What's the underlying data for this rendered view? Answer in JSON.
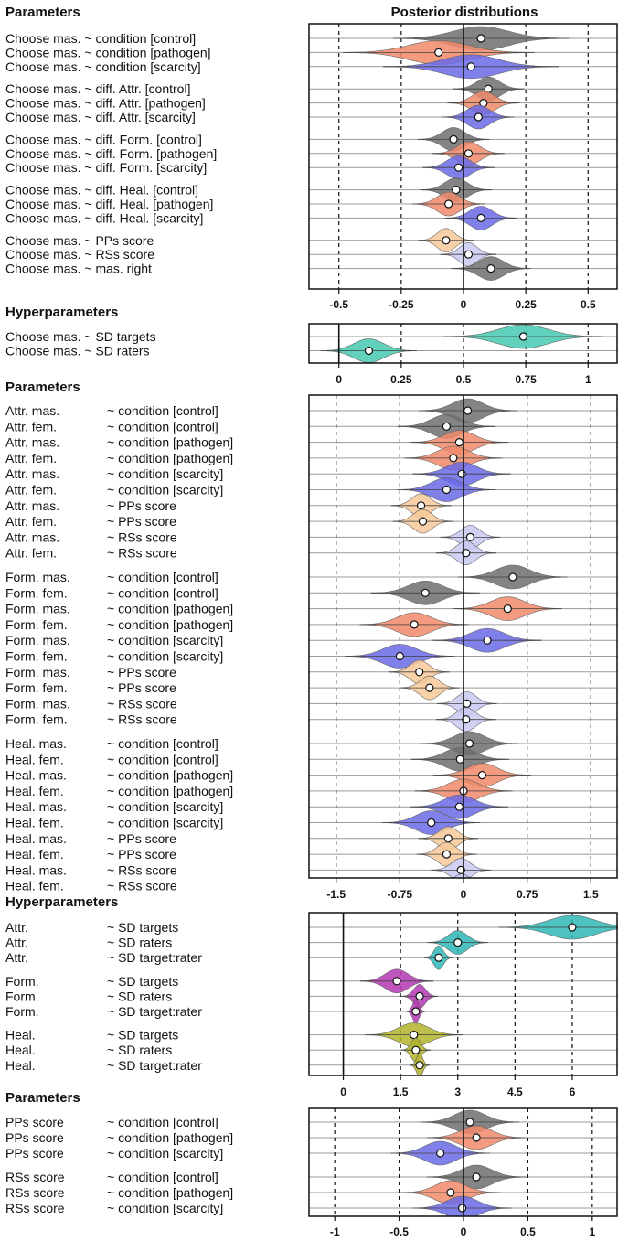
{
  "figure": {
    "title": "Posterior distributions",
    "colors": {
      "control": "#6f6f6f",
      "pathogen": "#f08a6a",
      "scarcity": "#6a6ae8",
      "pps": "#f7c99a",
      "rss": "#c9c9f2",
      "masright": "#6f6f6f",
      "targets": "#45c8b0",
      "raters": "#45c8b0",
      "attr": "#2fb6b6",
      "form": "#b338b3",
      "heal": "#b3b32a"
    }
  },
  "chart_data": [
    {
      "type": "violin",
      "section_title": "Parameters",
      "xlim": [
        -0.62,
        0.62
      ],
      "ticks": [
        -0.5,
        -0.25,
        0,
        0.25,
        0.5
      ],
      "tick_labels": [
        "-0.5",
        "-0.25",
        "0",
        "0.25",
        "0.5"
      ],
      "dashed_at": [
        -0.5,
        -0.25,
        0.25,
        0.5
      ],
      "solid_at": [
        0
      ],
      "rows": [
        {
          "label": "Choose mas. ~ condition [control]",
          "median": 0.07,
          "sd": 0.11,
          "color": "control",
          "group": 0
        },
        {
          "label": "Choose mas. ~ condition [pathogen]",
          "median": -0.1,
          "sd": 0.12,
          "color": "pathogen",
          "group": 0
        },
        {
          "label": "Choose mas. ~ condition [scarcity]",
          "median": 0.03,
          "sd": 0.11,
          "color": "scarcity",
          "group": 0
        },
        {
          "label": "Choose mas. ~ diff. Attr. [control]",
          "median": 0.1,
          "sd": 0.045,
          "color": "control",
          "group": 1
        },
        {
          "label": "Choose mas. ~ diff. Attr. [pathogen]",
          "median": 0.08,
          "sd": 0.045,
          "color": "pathogen",
          "group": 1
        },
        {
          "label": "Choose mas. ~ diff. Attr. [scarcity]",
          "median": 0.06,
          "sd": 0.045,
          "color": "scarcity",
          "group": 1
        },
        {
          "label": "Choose mas. ~ diff. Form. [control]",
          "median": -0.04,
          "sd": 0.045,
          "color": "control",
          "group": 2
        },
        {
          "label": "Choose mas. ~ diff. Form. [pathogen]",
          "median": 0.02,
          "sd": 0.045,
          "color": "pathogen",
          "group": 2
        },
        {
          "label": "Choose mas. ~ diff. Form. [scarcity]",
          "median": -0.02,
          "sd": 0.045,
          "color": "scarcity",
          "group": 2
        },
        {
          "label": "Choose mas. ~ diff. Heal. [control]",
          "median": -0.03,
          "sd": 0.045,
          "color": "control",
          "group": 3
        },
        {
          "label": "Choose mas. ~ diff. Heal. [pathogen]",
          "median": -0.06,
          "sd": 0.045,
          "color": "pathogen",
          "group": 3
        },
        {
          "label": "Choose mas. ~ diff. Heal. [scarcity]",
          "median": 0.07,
          "sd": 0.045,
          "color": "scarcity",
          "group": 3
        },
        {
          "label": "Choose mas. ~ PPs score",
          "median": -0.07,
          "sd": 0.035,
          "color": "pps",
          "group": 4
        },
        {
          "label": "Choose mas. ~ RSs score",
          "median": 0.02,
          "sd": 0.035,
          "color": "rss",
          "group": 4
        },
        {
          "label": "Choose mas. ~ mas. right",
          "median": 0.11,
          "sd": 0.05,
          "color": "masright",
          "group": 4
        }
      ]
    },
    {
      "type": "violin",
      "section_title": "Hyperparameters",
      "xlim": [
        -0.12,
        1.12
      ],
      "ticks": [
        0,
        0.25,
        0.5,
        0.75,
        1
      ],
      "tick_labels": [
        "0",
        "0.25",
        "0.5",
        "0.75",
        "1"
      ],
      "dashed_at": [
        0.25,
        0.5,
        0.75,
        1
      ],
      "solid_at": [
        0
      ],
      "rows": [
        {
          "label": "Choose mas. ~ SD targets",
          "median": 0.74,
          "sd": 0.1,
          "color": "targets",
          "group": 0
        },
        {
          "label": "Choose mas. ~ SD raters",
          "median": 0.12,
          "sd": 0.06,
          "color": "raters",
          "group": 0
        }
      ]
    },
    {
      "type": "violin",
      "section_title": "Parameters",
      "xlim": [
        -1.82,
        1.82
      ],
      "ticks": [
        -1.5,
        -0.75,
        0,
        0.75,
        1.5
      ],
      "tick_labels": [
        "-1.5",
        "-0.75",
        "0",
        "0.75",
        "1.5"
      ],
      "dashed_at": [
        -1.5,
        -0.75,
        0.75,
        1.5
      ],
      "solid_at": [
        0
      ],
      "rows": [
        {
          "label": [
            "Attr. mas.",
            "~ condition [control]"
          ],
          "median": 0.05,
          "sd": 0.18,
          "color": "control",
          "group": 0
        },
        {
          "label": [
            "Attr. fem.",
            "~ condition [control]"
          ],
          "median": -0.2,
          "sd": 0.18,
          "color": "control",
          "group": 0
        },
        {
          "label": [
            "Attr. mas.",
            "~ condition [pathogen]"
          ],
          "median": -0.05,
          "sd": 0.18,
          "color": "pathogen",
          "group": 0
        },
        {
          "label": [
            "Attr. fem.",
            "~ condition [pathogen]"
          ],
          "median": -0.12,
          "sd": 0.18,
          "color": "pathogen",
          "group": 0
        },
        {
          "label": [
            "Attr. mas.",
            "~ condition [scarcity]"
          ],
          "median": -0.02,
          "sd": 0.18,
          "color": "scarcity",
          "group": 0
        },
        {
          "label": [
            "Attr. fem.",
            "~ condition [scarcity]"
          ],
          "median": -0.2,
          "sd": 0.18,
          "color": "scarcity",
          "group": 0
        },
        {
          "label": [
            "Attr. mas.",
            "~ PPs score"
          ],
          "median": -0.5,
          "sd": 0.11,
          "color": "pps",
          "group": 0
        },
        {
          "label": [
            "Attr. fem.",
            "~ PPs score"
          ],
          "median": -0.48,
          "sd": 0.11,
          "color": "pps",
          "group": 0
        },
        {
          "label": [
            "Attr. mas.",
            "~ RSs score"
          ],
          "median": 0.08,
          "sd": 0.11,
          "color": "rss",
          "group": 0
        },
        {
          "label": [
            "Attr. fem.",
            "~ RSs score"
          ],
          "median": 0.03,
          "sd": 0.11,
          "color": "rss",
          "group": 0
        },
        {
          "label": [
            "Form. mas.",
            "~ condition [control]"
          ],
          "median": 0.58,
          "sd": 0.2,
          "color": "control",
          "group": 1
        },
        {
          "label": [
            "Form. fem.",
            "~ condition [control]"
          ],
          "median": -0.45,
          "sd": 0.2,
          "color": "control",
          "group": 1
        },
        {
          "label": [
            "Form. mas.",
            "~ condition [pathogen]"
          ],
          "median": 0.52,
          "sd": 0.2,
          "color": "pathogen",
          "group": 1
        },
        {
          "label": [
            "Form. fem.",
            "~ condition [pathogen]"
          ],
          "median": -0.58,
          "sd": 0.2,
          "color": "pathogen",
          "group": 1
        },
        {
          "label": [
            "Form. mas.",
            "~ condition [scarcity]"
          ],
          "median": 0.28,
          "sd": 0.2,
          "color": "scarcity",
          "group": 1
        },
        {
          "label": [
            "Form. fem.",
            "~ condition [scarcity]"
          ],
          "median": -0.75,
          "sd": 0.2,
          "color": "scarcity",
          "group": 1
        },
        {
          "label": [
            "Form. mas.",
            "~ PPs score"
          ],
          "median": -0.52,
          "sd": 0.11,
          "color": "pps",
          "group": 1
        },
        {
          "label": [
            "Form. fem.",
            "~ PPs score"
          ],
          "median": -0.4,
          "sd": 0.11,
          "color": "pps",
          "group": 1
        },
        {
          "label": [
            "Form. mas.",
            "~ RSs score"
          ],
          "median": 0.04,
          "sd": 0.11,
          "color": "rss",
          "group": 1
        },
        {
          "label": [
            "Form. fem.",
            "~ RSs score"
          ],
          "median": 0.03,
          "sd": 0.11,
          "color": "rss",
          "group": 1
        },
        {
          "label": [
            "Heal. mas.",
            "~ condition [control]"
          ],
          "median": 0.07,
          "sd": 0.18,
          "color": "control",
          "group": 2
        },
        {
          "label": [
            "Heal. fem.",
            "~ condition [control]"
          ],
          "median": -0.04,
          "sd": 0.18,
          "color": "control",
          "group": 2
        },
        {
          "label": [
            "Heal. mas.",
            "~ condition [pathogen]"
          ],
          "median": 0.22,
          "sd": 0.18,
          "color": "pathogen",
          "group": 2
        },
        {
          "label": [
            "Heal. fem.",
            "~ condition [pathogen]"
          ],
          "median": 0,
          "sd": 0.18,
          "color": "pathogen",
          "group": 2
        },
        {
          "label": [
            "Heal. mas.",
            "~ condition [scarcity]"
          ],
          "median": -0.05,
          "sd": 0.18,
          "color": "scarcity",
          "group": 2
        },
        {
          "label": [
            "Heal. fem.",
            "~ condition [scarcity]"
          ],
          "median": -0.38,
          "sd": 0.18,
          "color": "scarcity",
          "group": 2
        },
        {
          "label": [
            "Heal. mas.",
            "~ PPs score"
          ],
          "median": -0.18,
          "sd": 0.11,
          "color": "pps",
          "group": 2
        },
        {
          "label": [
            "Heal. fem.",
            "~ PPs score"
          ],
          "median": -0.2,
          "sd": 0.11,
          "color": "pps",
          "group": 2
        },
        {
          "label": [
            "Heal. mas.",
            "~ RSs score"
          ],
          "median": -0.03,
          "sd": 0.11,
          "color": "rss",
          "group": 2
        },
        {
          "label": [
            "Heal. fem.",
            "~ RSs score"
          ],
          "median": -0.02,
          "sd": 0.11,
          "color": "rss",
          "group": 2
        }
      ]
    },
    {
      "type": "violin",
      "section_title": "Hyperparameters",
      "xlim": [
        -0.9,
        7.2
      ],
      "ticks": [
        0,
        1.5,
        3,
        4.5,
        6
      ],
      "tick_labels": [
        "0",
        "1.5",
        "3",
        "4.5",
        "6"
      ],
      "dashed_at": [
        1.5,
        3,
        4.5,
        6
      ],
      "solid_at": [
        0
      ],
      "rows": [
        {
          "label": [
            "Attr.",
            "~ SD targets"
          ],
          "median": 6.0,
          "sd": 0.6,
          "color": "attr",
          "group": 0
        },
        {
          "label": [
            "Attr.",
            "~ SD raters"
          ],
          "median": 3.0,
          "sd": 0.25,
          "color": "attr",
          "group": 0
        },
        {
          "label": [
            "Attr.",
            "~ SD target:rater"
          ],
          "median": 2.5,
          "sd": 0.12,
          "color": "attr",
          "group": 0
        },
        {
          "label": [
            "Form.",
            "~ SD targets"
          ],
          "median": 1.4,
          "sd": 0.3,
          "color": "form",
          "group": 1
        },
        {
          "label": [
            "Form.",
            "~ SD raters"
          ],
          "median": 2.0,
          "sd": 0.15,
          "color": "form",
          "group": 1
        },
        {
          "label": [
            "Form.",
            "~ SD target:rater"
          ],
          "median": 1.9,
          "sd": 0.08,
          "color": "form",
          "group": 1
        },
        {
          "label": [
            "Heal.",
            "~ SD targets"
          ],
          "median": 1.85,
          "sd": 0.4,
          "color": "heal",
          "group": 2
        },
        {
          "label": [
            "Heal.",
            "~ SD raters"
          ],
          "median": 1.9,
          "sd": 0.12,
          "color": "heal",
          "group": 2
        },
        {
          "label": [
            "Heal.",
            "~ SD target:rater"
          ],
          "median": 2.0,
          "sd": 0.08,
          "color": "heal",
          "group": 2
        }
      ]
    },
    {
      "type": "violin",
      "section_title": "Parameters",
      "xlim": [
        -1.2,
        1.2
      ],
      "ticks": [
        -1,
        -0.5,
        0,
        0.5,
        1
      ],
      "tick_labels": [
        "-1",
        "-0.5",
        "0",
        "0.5",
        "1"
      ],
      "dashed_at": [
        -1,
        -0.5,
        0.5,
        1
      ],
      "solid_at": [
        0
      ],
      "rows": [
        {
          "label": [
            "PPs score",
            "~ condition [control]"
          ],
          "median": 0.05,
          "sd": 0.12,
          "color": "control",
          "group": 0
        },
        {
          "label": [
            "PPs score",
            "~ condition [pathogen]"
          ],
          "median": 0.1,
          "sd": 0.12,
          "color": "pathogen",
          "group": 0
        },
        {
          "label": [
            "PPs score",
            "~ condition [scarcity]"
          ],
          "median": -0.18,
          "sd": 0.12,
          "color": "scarcity",
          "group": 0
        },
        {
          "label": [
            "RSs score",
            "~ condition [control]"
          ],
          "median": 0.1,
          "sd": 0.12,
          "color": "control",
          "group": 1
        },
        {
          "label": [
            "RSs score",
            "~ condition [pathogen]"
          ],
          "median": -0.1,
          "sd": 0.12,
          "color": "pathogen",
          "group": 1
        },
        {
          "label": [
            "RSs score",
            "~ condition [scarcity]"
          ],
          "median": -0.01,
          "sd": 0.12,
          "color": "scarcity",
          "group": 1
        }
      ]
    }
  ]
}
